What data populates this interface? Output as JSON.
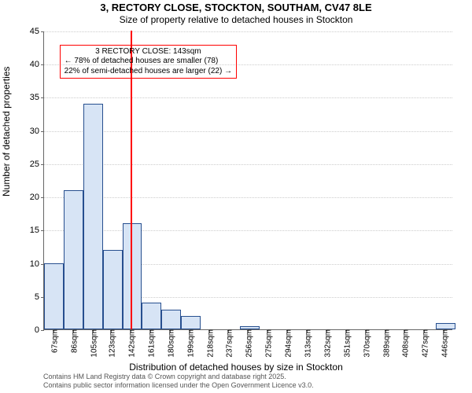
{
  "chart": {
    "type": "histogram",
    "title": "3, RECTORY CLOSE, STOCKTON, SOUTHAM, CV47 8LE",
    "subtitle": "Size of property relative to detached houses in Stockton",
    "xlabel": "Distribution of detached houses by size in Stockton",
    "ylabel": "Number of detached properties",
    "background_color": "#ffffff",
    "plot_border_color": "#666666",
    "grid_color": "#cccccc",
    "bar_fill": "#d7e4f5",
    "bar_border": "#274f8f",
    "marker_color": "#ff0000",
    "ylim": [
      0,
      45
    ],
    "ytick_step": 5,
    "yticks": [
      0,
      5,
      10,
      15,
      20,
      25,
      30,
      35,
      40,
      45
    ],
    "xlim_sqm": [
      58,
      455
    ],
    "xticks": [
      {
        "v": 67,
        "label": "67sqm"
      },
      {
        "v": 86,
        "label": "86sqm"
      },
      {
        "v": 105,
        "label": "105sqm"
      },
      {
        "v": 123,
        "label": "123sqm"
      },
      {
        "v": 142,
        "label": "142sqm"
      },
      {
        "v": 161,
        "label": "161sqm"
      },
      {
        "v": 180,
        "label": "180sqm"
      },
      {
        "v": 199,
        "label": "199sqm"
      },
      {
        "v": 218,
        "label": "218sqm"
      },
      {
        "v": 237,
        "label": "237sqm"
      },
      {
        "v": 256,
        "label": "256sqm"
      },
      {
        "v": 275,
        "label": "275sqm"
      },
      {
        "v": 294,
        "label": "294sqm"
      },
      {
        "v": 313,
        "label": "313sqm"
      },
      {
        "v": 332,
        "label": "332sqm"
      },
      {
        "v": 351,
        "label": "351sqm"
      },
      {
        "v": 370,
        "label": "370sqm"
      },
      {
        "v": 389,
        "label": "389sqm"
      },
      {
        "v": 408,
        "label": "408sqm"
      },
      {
        "v": 427,
        "label": "427sqm"
      },
      {
        "v": 446,
        "label": "446sqm"
      }
    ],
    "bars": [
      {
        "x0": 58,
        "x1": 77,
        "y": 10
      },
      {
        "x0": 77,
        "x1": 96,
        "y": 21
      },
      {
        "x0": 96,
        "x1": 115,
        "y": 34
      },
      {
        "x0": 115,
        "x1": 134,
        "y": 12
      },
      {
        "x0": 134,
        "x1": 153,
        "y": 16
      },
      {
        "x0": 153,
        "x1": 172,
        "y": 4
      },
      {
        "x0": 172,
        "x1": 191,
        "y": 3
      },
      {
        "x0": 191,
        "x1": 210,
        "y": 2
      },
      {
        "x0": 248,
        "x1": 267,
        "y": 0.5
      },
      {
        "x0": 438,
        "x1": 457,
        "y": 1
      }
    ],
    "marker_sqm": 143,
    "annotation": {
      "line1": "3 RECTORY CLOSE: 143sqm",
      "line2": "← 78% of detached houses are smaller (78)",
      "line3": "22% of semi-detached houses are larger (22) →",
      "border_color": "#ff0000",
      "text_color": "#000000",
      "left_sqm": 73,
      "top_yval": 43
    },
    "attribution": {
      "line1": "Contains HM Land Registry data © Crown copyright and database right 2025.",
      "line2": "Contains public sector information licensed under the Open Government Licence v3.0.",
      "color": "#555555"
    }
  }
}
